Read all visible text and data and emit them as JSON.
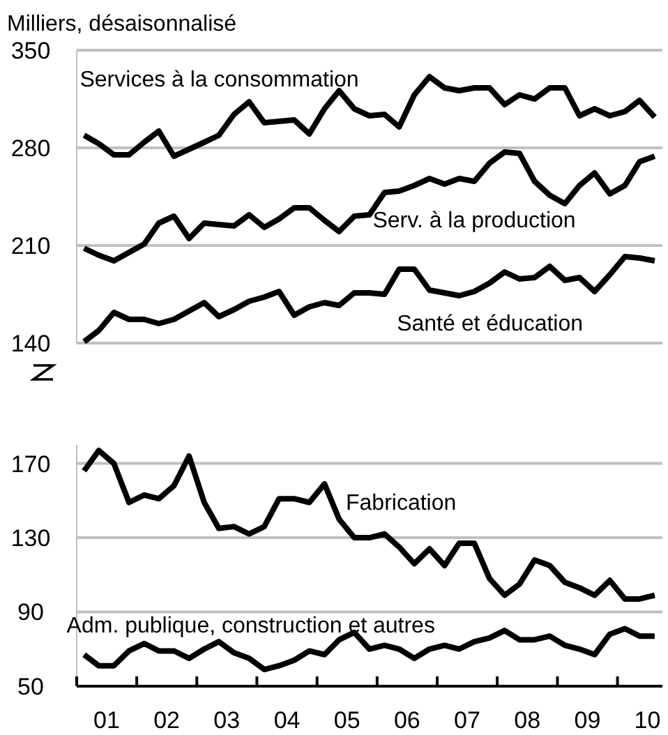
{
  "chart_data": [
    {
      "type": "line",
      "subtitle": "Milliers, désaisonnalisé",
      "xlim": [
        "2001-01-01",
        "2010-10-01"
      ],
      "ylim": [
        140,
        350
      ],
      "yticks": [
        140,
        210,
        280,
        350
      ],
      "grid": "y",
      "tick_labels": "y",
      "marker": "none",
      "line_style": "solid",
      "x": [
        "2001-02-15",
        "2001-05-15",
        "2001-08-15",
        "2001-11-15",
        "2002-02-15",
        "2002-05-15",
        "2002-08-15",
        "2002-11-15",
        "2003-02-15",
        "2003-05-15",
        "2003-08-15",
        "2003-11-15",
        "2004-02-15",
        "2004-05-15",
        "2004-08-15",
        "2004-11-15",
        "2005-02-15",
        "2005-05-15",
        "2005-08-15",
        "2005-11-15",
        "2006-02-15",
        "2006-05-15",
        "2006-08-15",
        "2006-11-15",
        "2007-02-15",
        "2007-05-15",
        "2007-08-15",
        "2007-11-15",
        "2008-02-15",
        "2008-05-15",
        "2008-08-15",
        "2008-11-15",
        "2009-02-15",
        "2009-05-15",
        "2009-08-15",
        "2009-11-15",
        "2010-02-15",
        "2010-05-15",
        "2010-08-15"
      ],
      "series": [
        {
          "name": "Services à la consommation",
          "color": "#000000",
          "values": [
            289,
            283,
            275,
            275,
            284,
            292,
            274,
            279,
            284,
            289,
            304,
            313,
            298,
            299,
            300,
            290,
            308,
            321,
            308,
            303,
            304,
            295,
            318,
            331,
            323,
            321,
            323,
            323,
            311,
            318,
            315,
            323,
            323,
            303,
            308,
            303,
            306,
            314,
            302
          ]
        },
        {
          "name": "Serv. à la production",
          "color": "#000000",
          "values": [
            208,
            203,
            199,
            205,
            211,
            226,
            231,
            215,
            226,
            225,
            224,
            232,
            223,
            229,
            237,
            237,
            228,
            220,
            231,
            232,
            248,
            249,
            253,
            258,
            254,
            258,
            256,
            269,
            277,
            276,
            256,
            246,
            240,
            253,
            262,
            247,
            253,
            270,
            274
          ]
        },
        {
          "name": "Santé et éducation",
          "color": "#000000",
          "values": [
            141,
            149,
            162,
            157,
            157,
            154,
            157,
            163,
            169,
            159,
            164,
            170,
            173,
            177,
            160,
            166,
            169,
            167,
            176,
            176,
            175,
            193,
            193,
            178,
            176,
            174,
            177,
            183,
            191,
            186,
            187,
            195,
            185,
            187,
            177,
            189,
            202,
            201,
            199
          ]
        }
      ]
    },
    {
      "type": "line",
      "xlim": [
        "2001-01-01",
        "2010-10-01"
      ],
      "xticks": [
        {
          "value": "2001-01-01",
          "label": null
        },
        {
          "value": "2001-07-02",
          "label": "01"
        },
        {
          "value": "2002-01-01",
          "label": null
        },
        {
          "value": "2002-07-02",
          "label": "02"
        },
        {
          "value": "2003-01-01",
          "label": null
        },
        {
          "value": "2003-07-02",
          "label": "03"
        },
        {
          "value": "2004-01-01",
          "label": null
        },
        {
          "value": "2004-07-02",
          "label": "04"
        },
        {
          "value": "2005-01-01",
          "label": null
        },
        {
          "value": "2005-07-02",
          "label": "05"
        },
        {
          "value": "2006-01-01",
          "label": null
        },
        {
          "value": "2006-07-02",
          "label": "06"
        },
        {
          "value": "2007-01-01",
          "label": null
        },
        {
          "value": "2007-07-02",
          "label": "07"
        },
        {
          "value": "2008-01-01",
          "label": null
        },
        {
          "value": "2008-07-02",
          "label": "08"
        },
        {
          "value": "2009-01-01",
          "label": null
        },
        {
          "value": "2009-07-02",
          "label": "09"
        },
        {
          "value": "2010-01-01",
          "label": null
        },
        {
          "value": "2010-07-02",
          "label": "10"
        }
      ],
      "ylim": [
        50,
        180
      ],
      "yticks": [
        50,
        90,
        130,
        170
      ],
      "grid": "y",
      "marker": "none",
      "line_style": "solid",
      "x": [
        "2001-02-15",
        "2001-05-15",
        "2001-08-15",
        "2001-11-15",
        "2002-02-15",
        "2002-05-15",
        "2002-08-15",
        "2002-11-15",
        "2003-02-15",
        "2003-05-15",
        "2003-08-15",
        "2003-11-15",
        "2004-02-15",
        "2004-05-15",
        "2004-08-15",
        "2004-11-15",
        "2005-02-15",
        "2005-05-15",
        "2005-08-15",
        "2005-11-15",
        "2006-02-15",
        "2006-05-15",
        "2006-08-15",
        "2006-11-15",
        "2007-02-15",
        "2007-05-15",
        "2007-08-15",
        "2007-11-15",
        "2008-02-15",
        "2008-05-15",
        "2008-08-15",
        "2008-11-15",
        "2009-02-15",
        "2009-05-15",
        "2009-08-15",
        "2009-11-15",
        "2010-02-15",
        "2010-05-15",
        "2010-08-15"
      ],
      "series": [
        {
          "name": "Fabrication",
          "color": "#000000",
          "values": [
            166,
            177,
            170,
            149,
            153,
            151,
            158,
            174,
            149,
            135,
            136,
            132,
            136,
            151,
            151,
            149,
            159,
            140,
            130,
            130,
            132,
            125,
            116,
            124,
            115,
            127,
            127,
            108,
            99,
            105,
            118,
            115,
            106,
            103,
            99,
            107,
            97,
            97,
            99
          ]
        },
        {
          "name": "Adm. publique, construction  et autres",
          "color": "#000000",
          "values": [
            67,
            61,
            61,
            69,
            73,
            69,
            69,
            65,
            70,
            74,
            68,
            65,
            59,
            61,
            64,
            69,
            67,
            75,
            79,
            70,
            72,
            70,
            65,
            70,
            72,
            70,
            74,
            76,
            80,
            75,
            75,
            77,
            72,
            70,
            67,
            78,
            81,
            77,
            77
          ]
        }
      ]
    }
  ]
}
